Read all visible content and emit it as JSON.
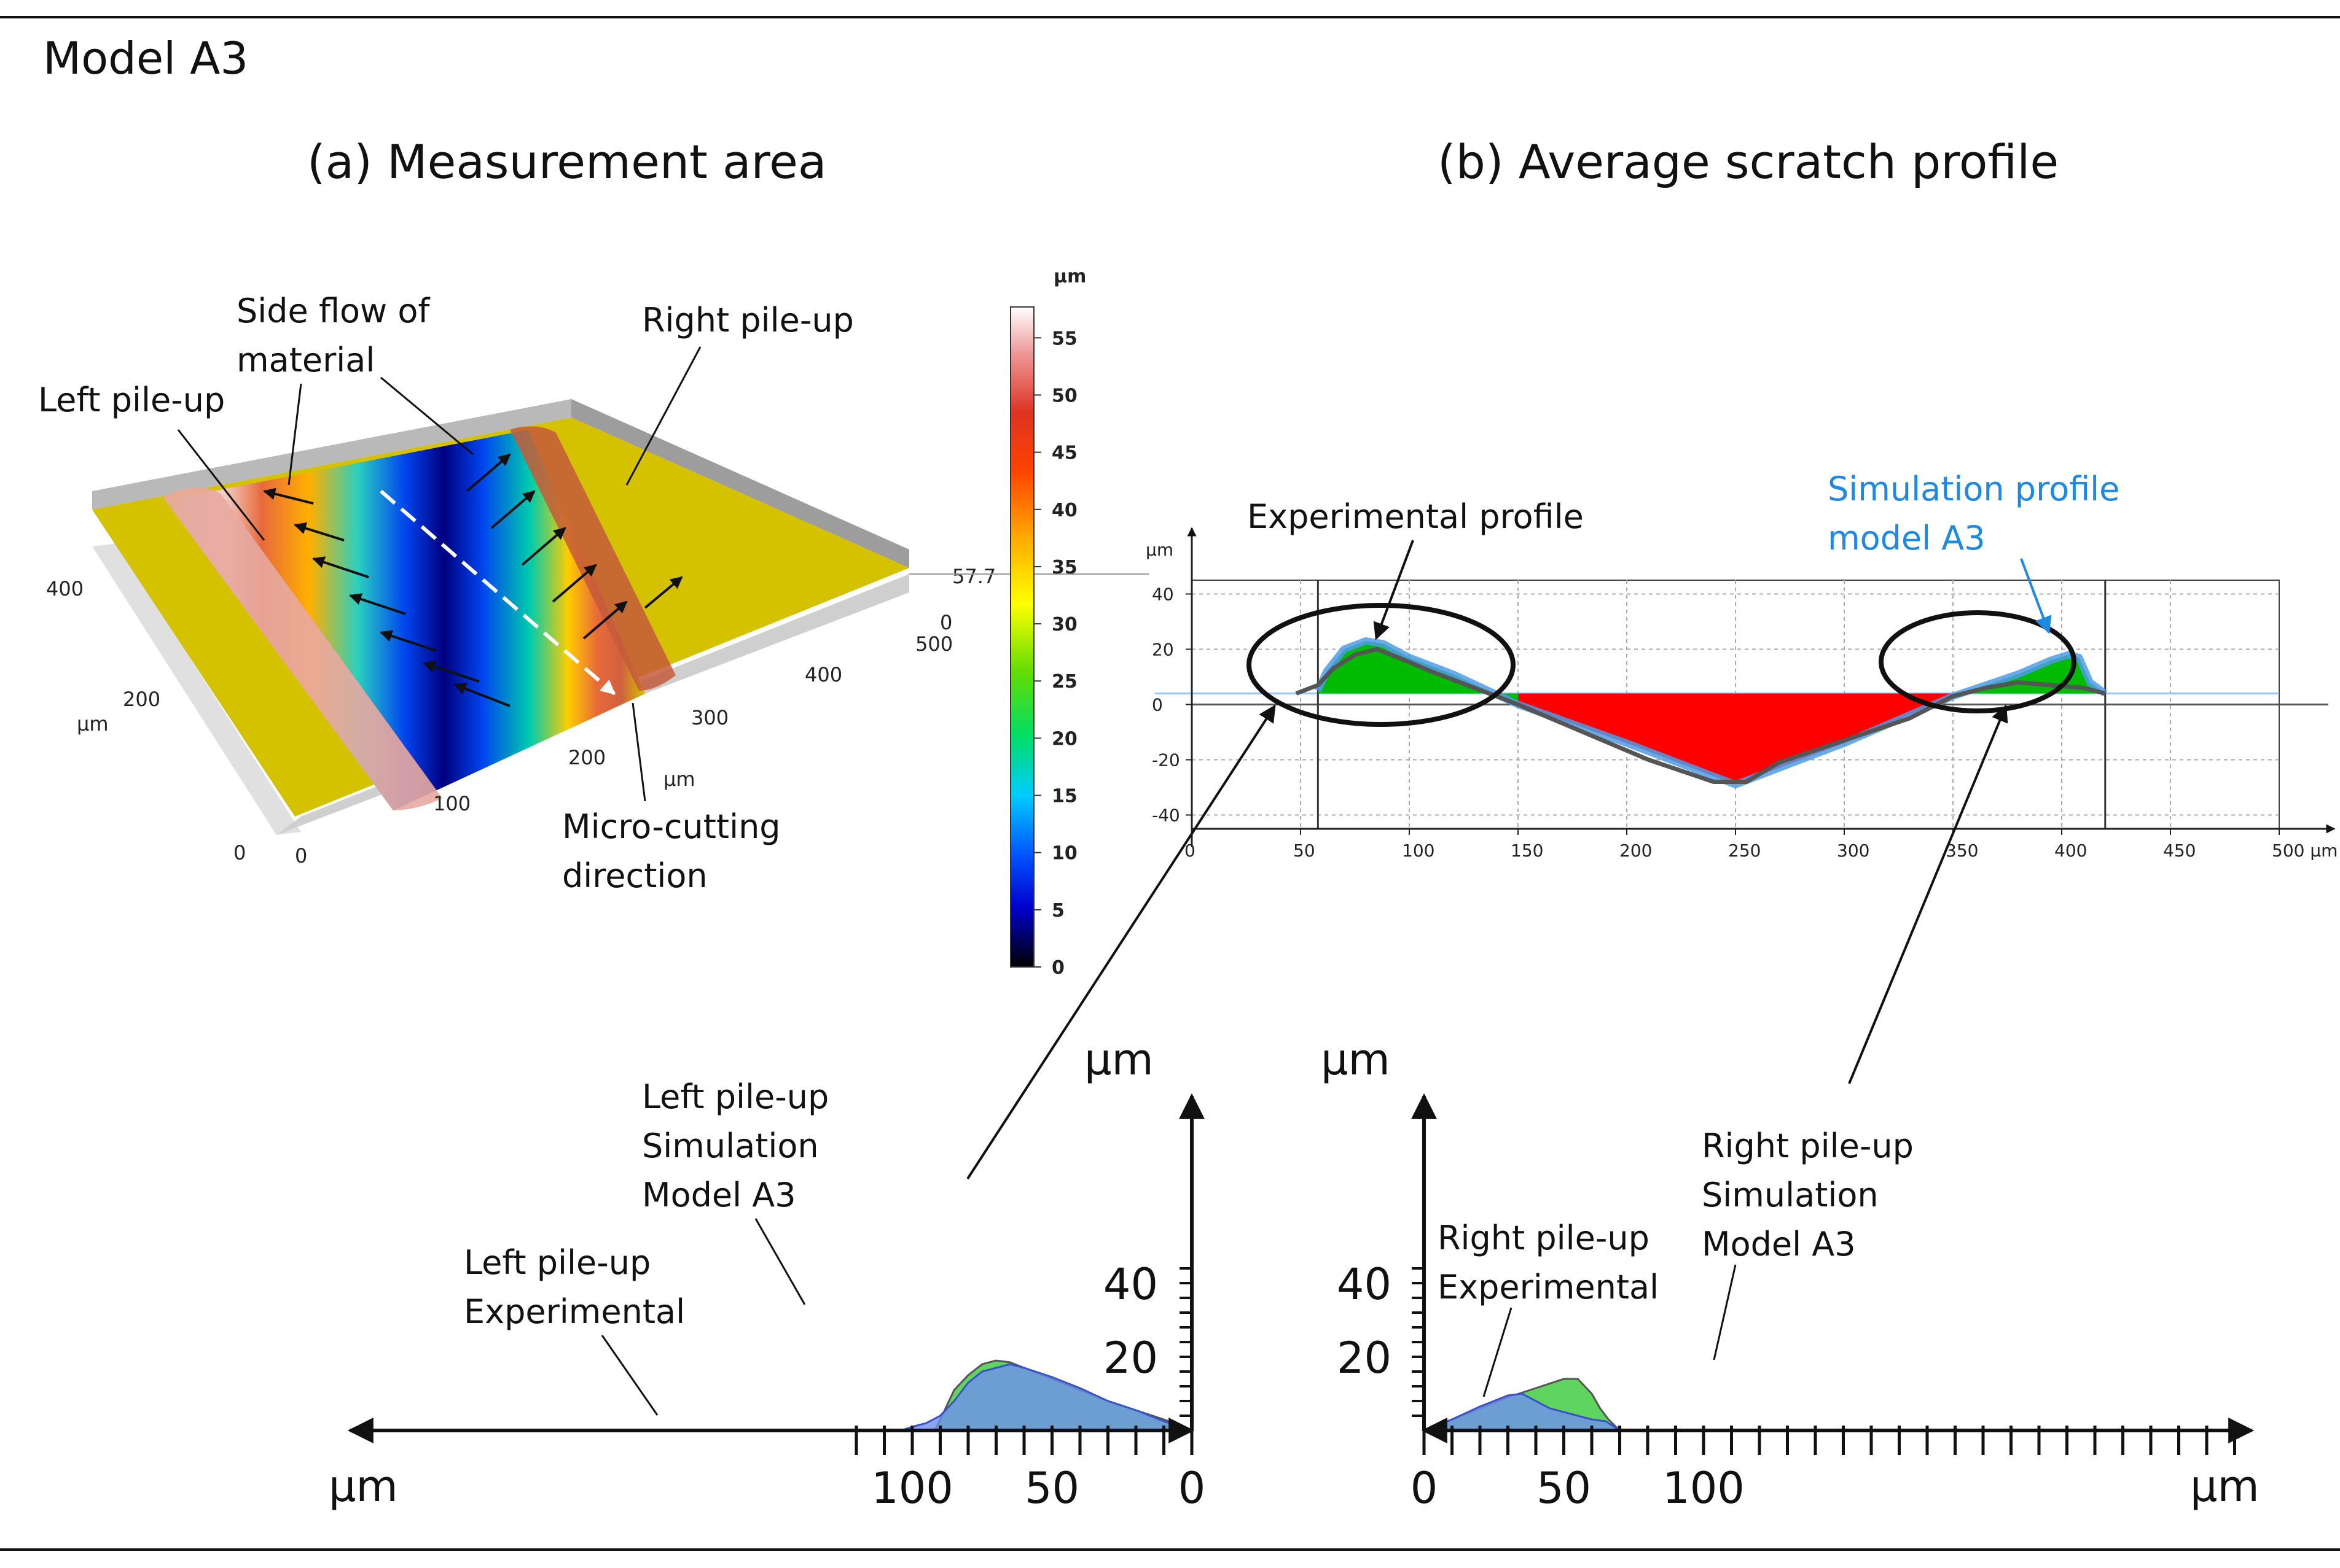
{
  "figure": {
    "title": "Model A3",
    "panel_a_title": "(a) Measurement area",
    "panel_b_title": "(b) Average scratch profile"
  },
  "surface_3d": {
    "annotations": {
      "left_pileup": "Left pile-up",
      "side_flow_1": "Side flow of",
      "side_flow_2": "material",
      "right_pileup": "Right pile-up",
      "micro_cutting_1": "Micro-cutting",
      "micro_cutting_2": "direction"
    },
    "axis_unit": "µm",
    "x_ticks": [
      "0",
      "100",
      "200",
      "300",
      "400",
      "500"
    ],
    "y_ticks": [
      "0",
      "200",
      "400"
    ],
    "z_ticks": [
      "0",
      "57.7"
    ],
    "colorbar": {
      "unit": "µm",
      "ticks": [
        "0",
        "5",
        "10",
        "15",
        "20",
        "25",
        "30",
        "35",
        "40",
        "45",
        "50",
        "55"
      ],
      "colors": [
        "#000000",
        "#0000cc",
        "#0055ff",
        "#00ccff",
        "#00dd66",
        "#66dd00",
        "#ffff00",
        "#ffaa00",
        "#ff4400",
        "#dd3322",
        "#ee9999",
        "#ffffff"
      ]
    },
    "colors": {
      "floor": "#d4c200",
      "groove_deep": "#0000aa",
      "pile_up": "#d06040"
    }
  },
  "chart_data": [
    {
      "type": "area",
      "panel": "b",
      "xlabel": "µm",
      "ylabel": "µm",
      "xlim": [
        0,
        500
      ],
      "ylim": [
        -45,
        45
      ],
      "x_ticks": [
        "0",
        "50",
        "100",
        "150",
        "200",
        "250",
        "300",
        "350",
        "400",
        "450",
        "500 µm"
      ],
      "y_ticks": [
        "40",
        "20",
        "0",
        "-20",
        "-40"
      ],
      "annotations": {
        "experimental": "Experimental profile",
        "sim_line1": "Simulation profile",
        "sim_line2": "model A3"
      },
      "series": [
        {
          "name": "Experimental profile",
          "color": "#555555",
          "x": [
            48,
            58,
            65,
            75,
            85,
            95,
            110,
            130,
            150,
            180,
            210,
            240,
            255,
            270,
            300,
            330,
            350,
            365,
            380,
            395,
            410,
            420
          ],
          "y": [
            4,
            7,
            13,
            18,
            20,
            17,
            12,
            6,
            0,
            -10,
            -20,
            -28,
            -28,
            -21,
            -13,
            -5,
            3,
            6,
            8,
            7,
            6,
            4
          ]
        },
        {
          "name": "Simulation profile model A3",
          "color": "#4d9be6",
          "x": [
            58,
            62,
            70,
            80,
            88,
            100,
            120,
            150,
            200,
            250,
            300,
            350,
            380,
            395,
            403,
            408,
            413,
            420
          ],
          "y": [
            5,
            12,
            20,
            23,
            22,
            17,
            11,
            0,
            -14,
            -29,
            -14,
            3,
            11,
            16,
            18,
            17,
            8,
            4
          ]
        }
      ],
      "fill_colors": {
        "pile_up": "#00bb00",
        "groove": "#ff0000"
      }
    },
    {
      "type": "area",
      "panel": "left pile-up detail",
      "xlabel": "µm",
      "ylabel": "µm",
      "x_ticks": [
        "100",
        "50",
        "0"
      ],
      "y_ticks": [
        "40",
        "20"
      ],
      "annotations": {
        "sim_l1": "Left pile-up",
        "sim_l2": "Simulation",
        "sim_l3": "Model A3",
        "exp_l1": "Left pile-up",
        "exp_l2": "Experimental"
      },
      "series": [
        {
          "name": "Left pile-up Simulation Model A3",
          "color": "#5fd45f",
          "x": [
            0,
            10,
            20,
            30,
            40,
            50,
            60,
            65,
            70,
            75,
            80,
            85,
            90,
            92
          ],
          "y": [
            0,
            3,
            5.5,
            8,
            11,
            14,
            17,
            18.5,
            19,
            18,
            15,
            11,
            3,
            0
          ]
        },
        {
          "name": "Left pile-up Experimental",
          "color": "#6f8ef0",
          "x": [
            0,
            10,
            20,
            30,
            40,
            50,
            60,
            65,
            70,
            75,
            80,
            85,
            90,
            95,
            100,
            104
          ],
          "y": [
            0,
            2.5,
            5.5,
            8,
            11.5,
            14.5,
            17,
            18,
            17,
            16,
            13,
            8,
            4,
            2,
            1,
            0
          ]
        }
      ]
    },
    {
      "type": "area",
      "panel": "right pile-up detail",
      "xlabel": "µm",
      "ylabel": "µm",
      "x_ticks": [
        "0",
        "50",
        "100"
      ],
      "y_ticks": [
        "40",
        "20"
      ],
      "annotations": {
        "sim_l1": "Right pile-up",
        "sim_l2": "Simulation",
        "sim_l3": "Model A3",
        "exp_l1": "Right pile-up",
        "exp_l2": "Experimental"
      },
      "series": [
        {
          "name": "Right pile-up Simulation Model A3",
          "color": "#5fd45f",
          "x": [
            0,
            10,
            20,
            30,
            40,
            50,
            55,
            60,
            63,
            66,
            70
          ],
          "y": [
            0,
            3,
            6,
            9,
            11.5,
            14,
            14,
            10,
            6,
            3,
            0
          ]
        },
        {
          "name": "Right pile-up Experimental",
          "color": "#6f8ef0",
          "x": [
            0,
            10,
            20,
            30,
            35,
            40,
            45,
            50,
            55,
            60,
            65,
            70
          ],
          "y": [
            0,
            3,
            6.5,
            9.5,
            10,
            8,
            6,
            5,
            4,
            3,
            2.5,
            0
          ]
        }
      ]
    }
  ]
}
